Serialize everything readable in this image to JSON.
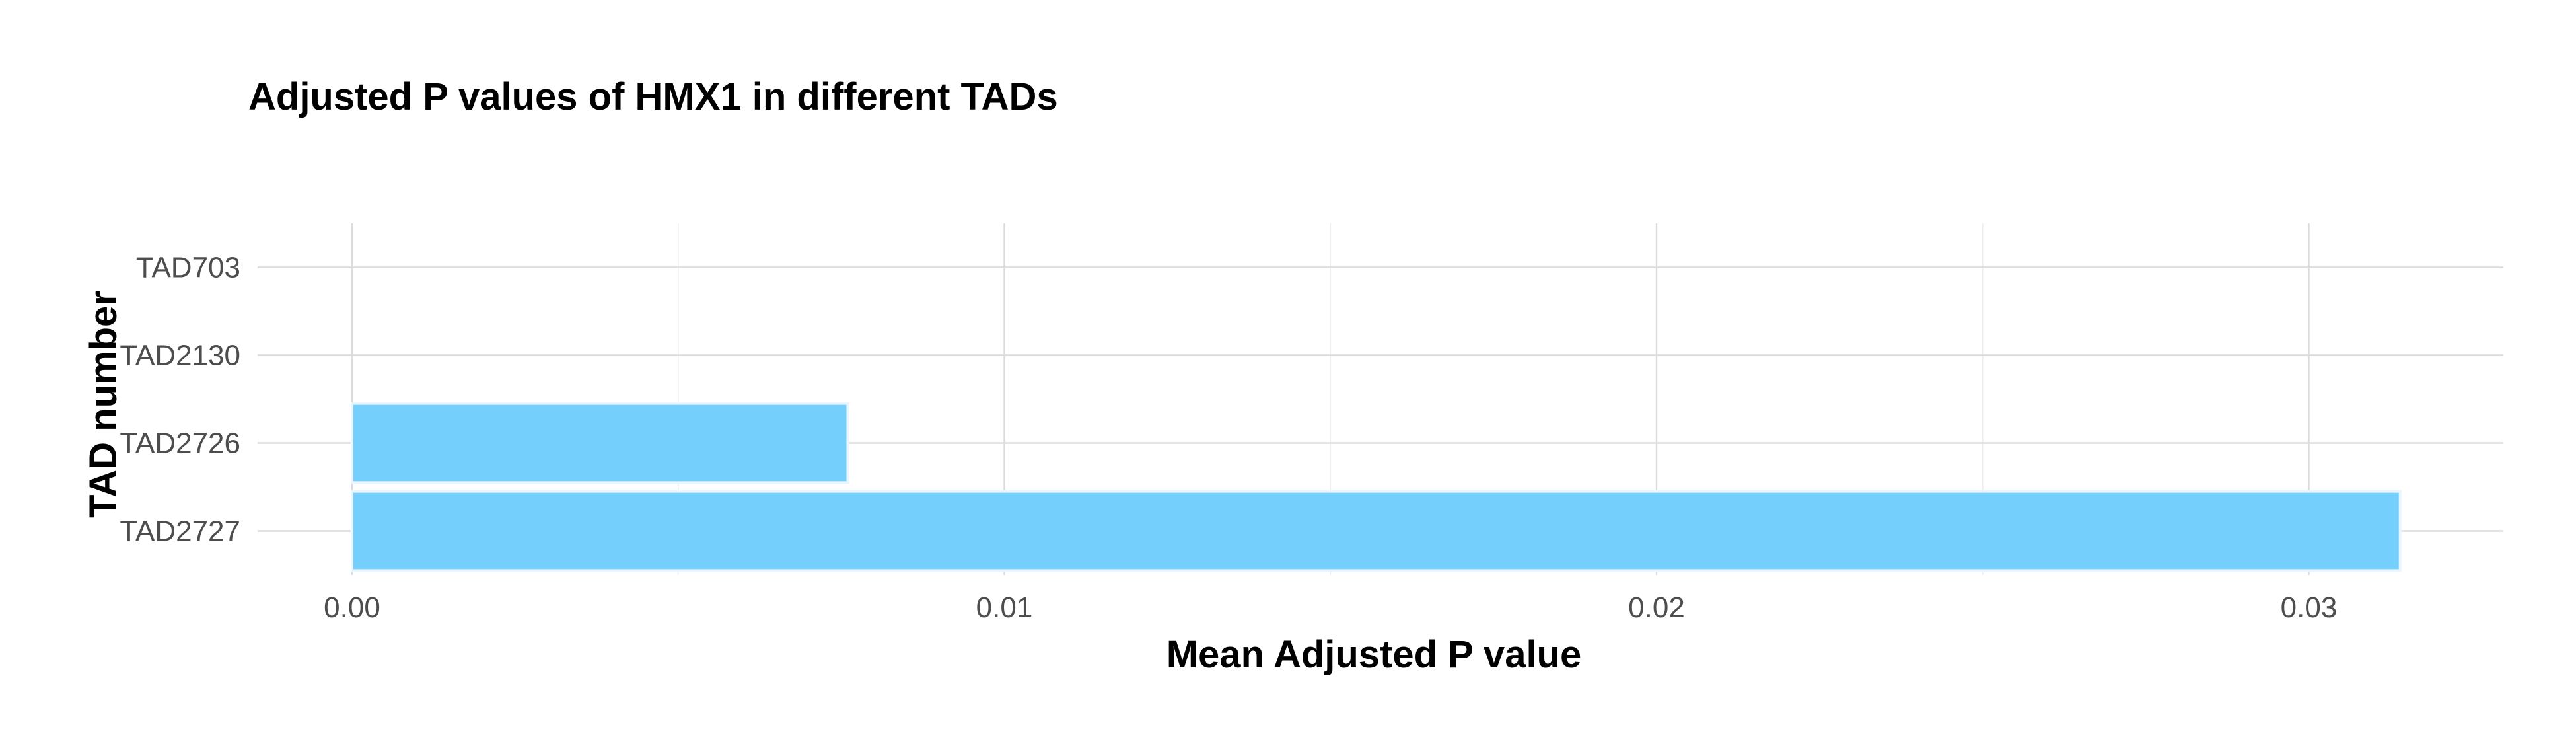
{
  "chart_data": {
    "type": "bar",
    "orientation": "horizontal",
    "title": "Adjusted P values of HMX1 in different TADs",
    "xlabel": "Mean Adjusted P value",
    "ylabel": "TAD number",
    "categories": [
      "TAD703",
      "TAD2130",
      "TAD2726",
      "TAD2727"
    ],
    "values": [
      0.0,
      0.0,
      0.0076,
      0.0314
    ],
    "xlim": [
      0.0,
      0.033
    ],
    "x_ticks": [
      0.0,
      0.01,
      0.02,
      0.03
    ],
    "x_tick_labels": [
      "0.00",
      "0.01",
      "0.02",
      "0.03"
    ],
    "grid": true,
    "bar_color": "#75cffc",
    "legend": "none"
  }
}
